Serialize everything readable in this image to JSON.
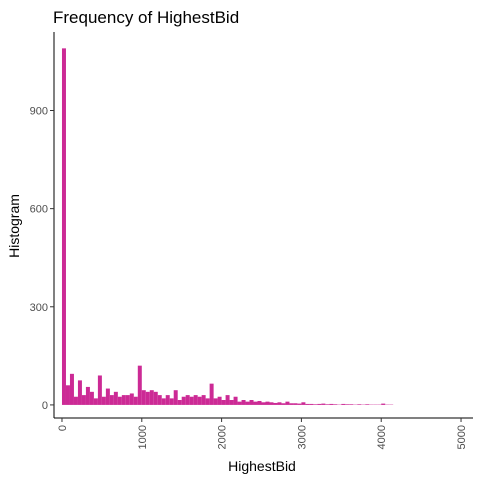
{
  "chart_data": {
    "type": "bar",
    "title": "Frequency of HighestBid",
    "xlabel": "HighestBid",
    "ylabel": "Histogram",
    "xlim": [
      -100,
      5150
    ],
    "ylim": [
      -40,
      1140
    ],
    "x_ticks": [
      0,
      1000,
      2000,
      3000,
      4000,
      5000
    ],
    "y_ticks": [
      0,
      300,
      600,
      900
    ],
    "bin_width": 50,
    "bar_color": "#cc2a95",
    "grid": false,
    "legend": "none",
    "series": [
      {
        "x": [
          0,
          50,
          100,
          150,
          200,
          250,
          300,
          350,
          400,
          450,
          500,
          550,
          600,
          650,
          700,
          750,
          800,
          850,
          900,
          950,
          1000,
          1050,
          1100,
          1150,
          1200,
          1250,
          1300,
          1350,
          1400,
          1450,
          1500,
          1550,
          1600,
          1650,
          1700,
          1750,
          1800,
          1850,
          1900,
          1950,
          2000,
          2050,
          2100,
          2150,
          2200,
          2250,
          2300,
          2350,
          2400,
          2450,
          2500,
          2550,
          2600,
          2650,
          2700,
          2750,
          2800,
          2850,
          2900,
          2950,
          3000,
          3050,
          3100,
          3150,
          3200,
          3250,
          3300,
          3350,
          3400,
          3450,
          3500,
          3550,
          3600,
          3650,
          3700,
          3750,
          3800,
          3850,
          3900,
          3950,
          4000,
          4050,
          4100
        ],
        "values": [
          1090,
          60,
          95,
          25,
          75,
          30,
          55,
          40,
          20,
          90,
          25,
          50,
          30,
          40,
          25,
          30,
          30,
          35,
          25,
          120,
          45,
          40,
          45,
          40,
          30,
          20,
          30,
          20,
          45,
          15,
          25,
          30,
          25,
          30,
          25,
          30,
          20,
          65,
          20,
          25,
          15,
          30,
          15,
          25,
          10,
          15,
          10,
          15,
          10,
          12,
          8,
          10,
          8,
          6,
          8,
          5,
          10,
          5,
          5,
          4,
          8,
          3,
          3,
          2,
          3,
          4,
          2,
          3,
          2,
          1,
          3,
          2,
          2,
          1,
          2,
          1,
          2,
          1,
          1,
          1,
          4,
          1,
          1
        ]
      }
    ]
  }
}
